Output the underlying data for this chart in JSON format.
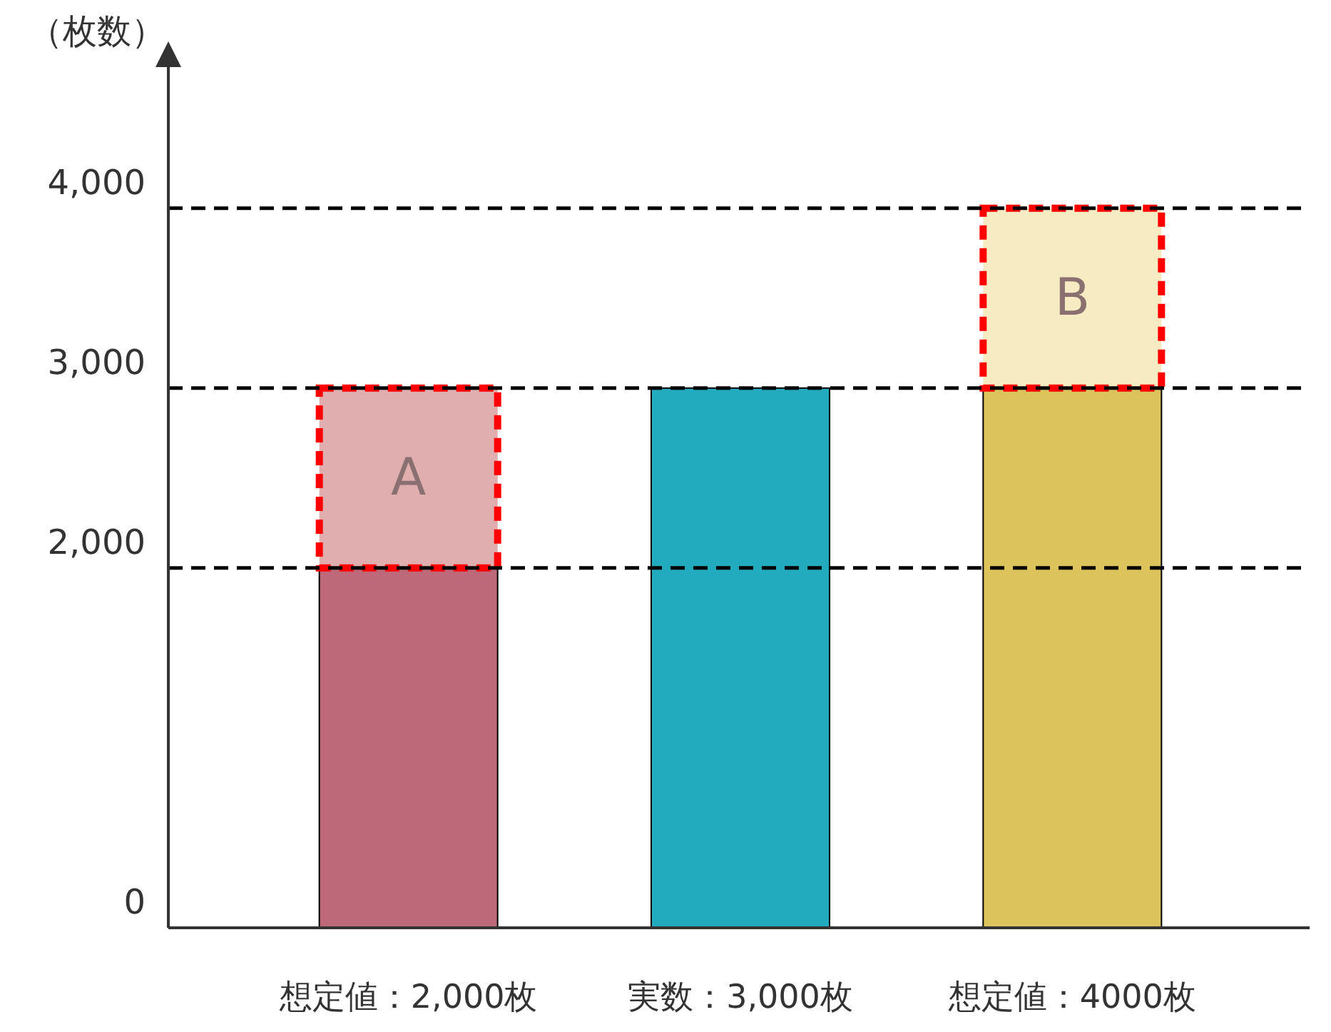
{
  "chart_data": {
    "type": "bar",
    "stacked": true,
    "ylabel": "（枚数）",
    "categories": [
      "想定値：2,000枚",
      "実数：3,000枚",
      "想定値：4000枚"
    ],
    "series": [
      {
        "colors": [
          "#bd697a",
          "#22abbf",
          "#dcc35c"
        ],
        "values": [
          2000,
          3000,
          3000
        ]
      },
      {
        "name": "A",
        "color": "#e0aeae",
        "values": [
          1000,
          null,
          null
        ],
        "line_style": "dashed"
      },
      {
        "name": "B",
        "color": "#f7ebc4",
        "values": [
          null,
          null,
          1000
        ],
        "line_style": "dashed"
      }
    ],
    "ylim": [
      0,
      4800
    ],
    "yticks": [
      0,
      {
        "value": 2000,
        "label": "2,000"
      },
      {
        "value": 3000,
        "label": "3,000"
      },
      {
        "value": 4000,
        "label": "4,000"
      }
    ],
    "ref_lines": [
      {
        "axis": "y",
        "value": 2000,
        "color": "#000000",
        "line_style": "dashed"
      },
      {
        "axis": "y",
        "value": 3000,
        "color": "#000000",
        "line_style": "dashed"
      },
      {
        "axis": "y",
        "value": 4000,
        "color": "#000000",
        "line_style": "dashed"
      }
    ],
    "grid": false
  }
}
